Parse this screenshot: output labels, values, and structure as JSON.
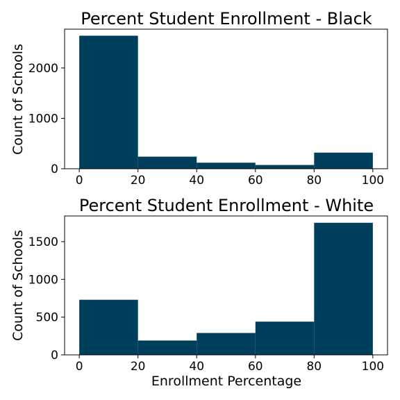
{
  "chart_data": [
    {
      "type": "bar",
      "title": "Percent Student Enrollment - Black",
      "xlabel": "",
      "ylabel": "Count of Schools",
      "bins": [
        [
          0,
          20
        ],
        [
          20,
          40
        ],
        [
          40,
          60
        ],
        [
          60,
          80
        ],
        [
          80,
          100
        ]
      ],
      "values": [
        2640,
        240,
        120,
        75,
        320
      ],
      "xlim": [
        -5,
        105
      ],
      "ylim": [
        0,
        2770
      ],
      "xticks": [
        0,
        20,
        40,
        60,
        80,
        100
      ],
      "yticks": [
        0,
        1000,
        2000
      ],
      "grid": false,
      "bar_color": "#003f5c"
    },
    {
      "type": "bar",
      "title": "Percent Student Enrollment - White",
      "xlabel": "Enrollment Percentage",
      "ylabel": "Count of Schools",
      "bins": [
        [
          0,
          20
        ],
        [
          20,
          40
        ],
        [
          40,
          60
        ],
        [
          60,
          80
        ],
        [
          80,
          100
        ]
      ],
      "values": [
        730,
        190,
        290,
        440,
        1750
      ],
      "xlim": [
        -5,
        105
      ],
      "ylim": [
        0,
        1840
      ],
      "xticks": [
        0,
        20,
        40,
        60,
        80,
        100
      ],
      "yticks": [
        0,
        500,
        1000,
        1500
      ],
      "grid": false,
      "bar_color": "#003f5c"
    }
  ]
}
